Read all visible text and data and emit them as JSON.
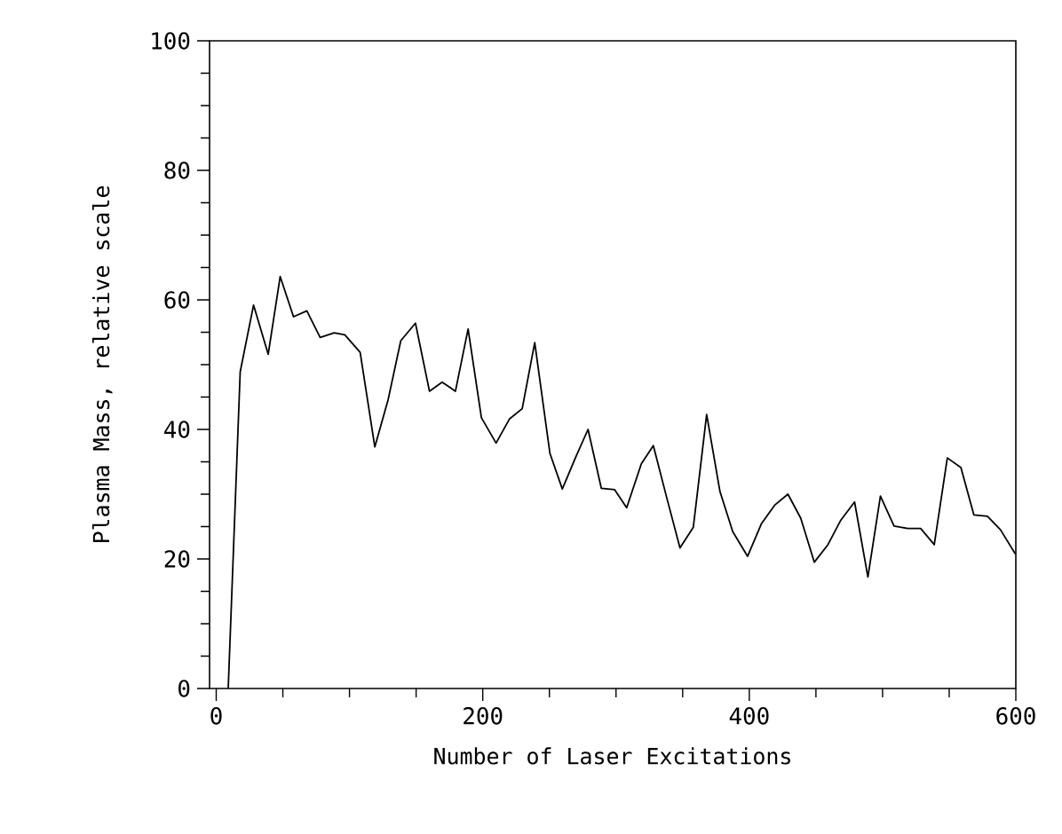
{
  "chart_data": {
    "type": "line",
    "xlabel": "Number of Laser Excitations",
    "ylabel": "Plasma Mass, relative scale",
    "xlim": [
      -5,
      600
    ],
    "ylim": [
      0,
      100
    ],
    "xticks": [
      0,
      200,
      400,
      600
    ],
    "yticks": [
      0,
      20,
      40,
      60,
      80,
      100
    ],
    "grid": false,
    "marker": "none",
    "line_style": "solid",
    "series": [
      {
        "color": "#000000",
        "x": [
          9,
          18,
          28,
          39,
          48,
          58,
          68,
          78,
          88.5,
          96.5,
          108,
          119,
          129,
          138.5,
          149.5,
          160,
          169.5,
          179.5,
          189,
          199,
          210,
          220,
          229.6,
          239,
          250.4,
          259.7,
          269.5,
          279,
          289,
          299,
          308,
          319,
          328,
          338,
          348,
          358,
          368,
          378,
          387.6,
          398.7,
          409,
          419,
          429,
          438.6,
          448.8,
          459,
          468.7,
          479,
          489,
          498.4,
          508.6,
          518.8,
          528.6,
          538.8,
          548.6,
          558.8,
          568.5,
          578.7,
          588.5,
          599.6
        ],
        "values": [
          0,
          48.9,
          59.2,
          51.6,
          63.6,
          57.4,
          58.3,
          54.2,
          54.9,
          54.6,
          51.9,
          37.3,
          44.6,
          53.7,
          56.4,
          45.9,
          47.3,
          45.9,
          55.5,
          41.8,
          37.9,
          41.6,
          43.2,
          53.4,
          36.3,
          30.8,
          35.6,
          40,
          30.9,
          30.7,
          27.9,
          34.7,
          37.5,
          29.5,
          21.7,
          24.9,
          42.3,
          30.4,
          24.2,
          20.4,
          25.4,
          28.3,
          30,
          26.3,
          19.5,
          22.2,
          26,
          28.8,
          17.2,
          29.7,
          25.1,
          24.7,
          24.7,
          22.2,
          35.6,
          34.1,
          26.8,
          26.6,
          24.5,
          20.8
        ]
      }
    ]
  }
}
